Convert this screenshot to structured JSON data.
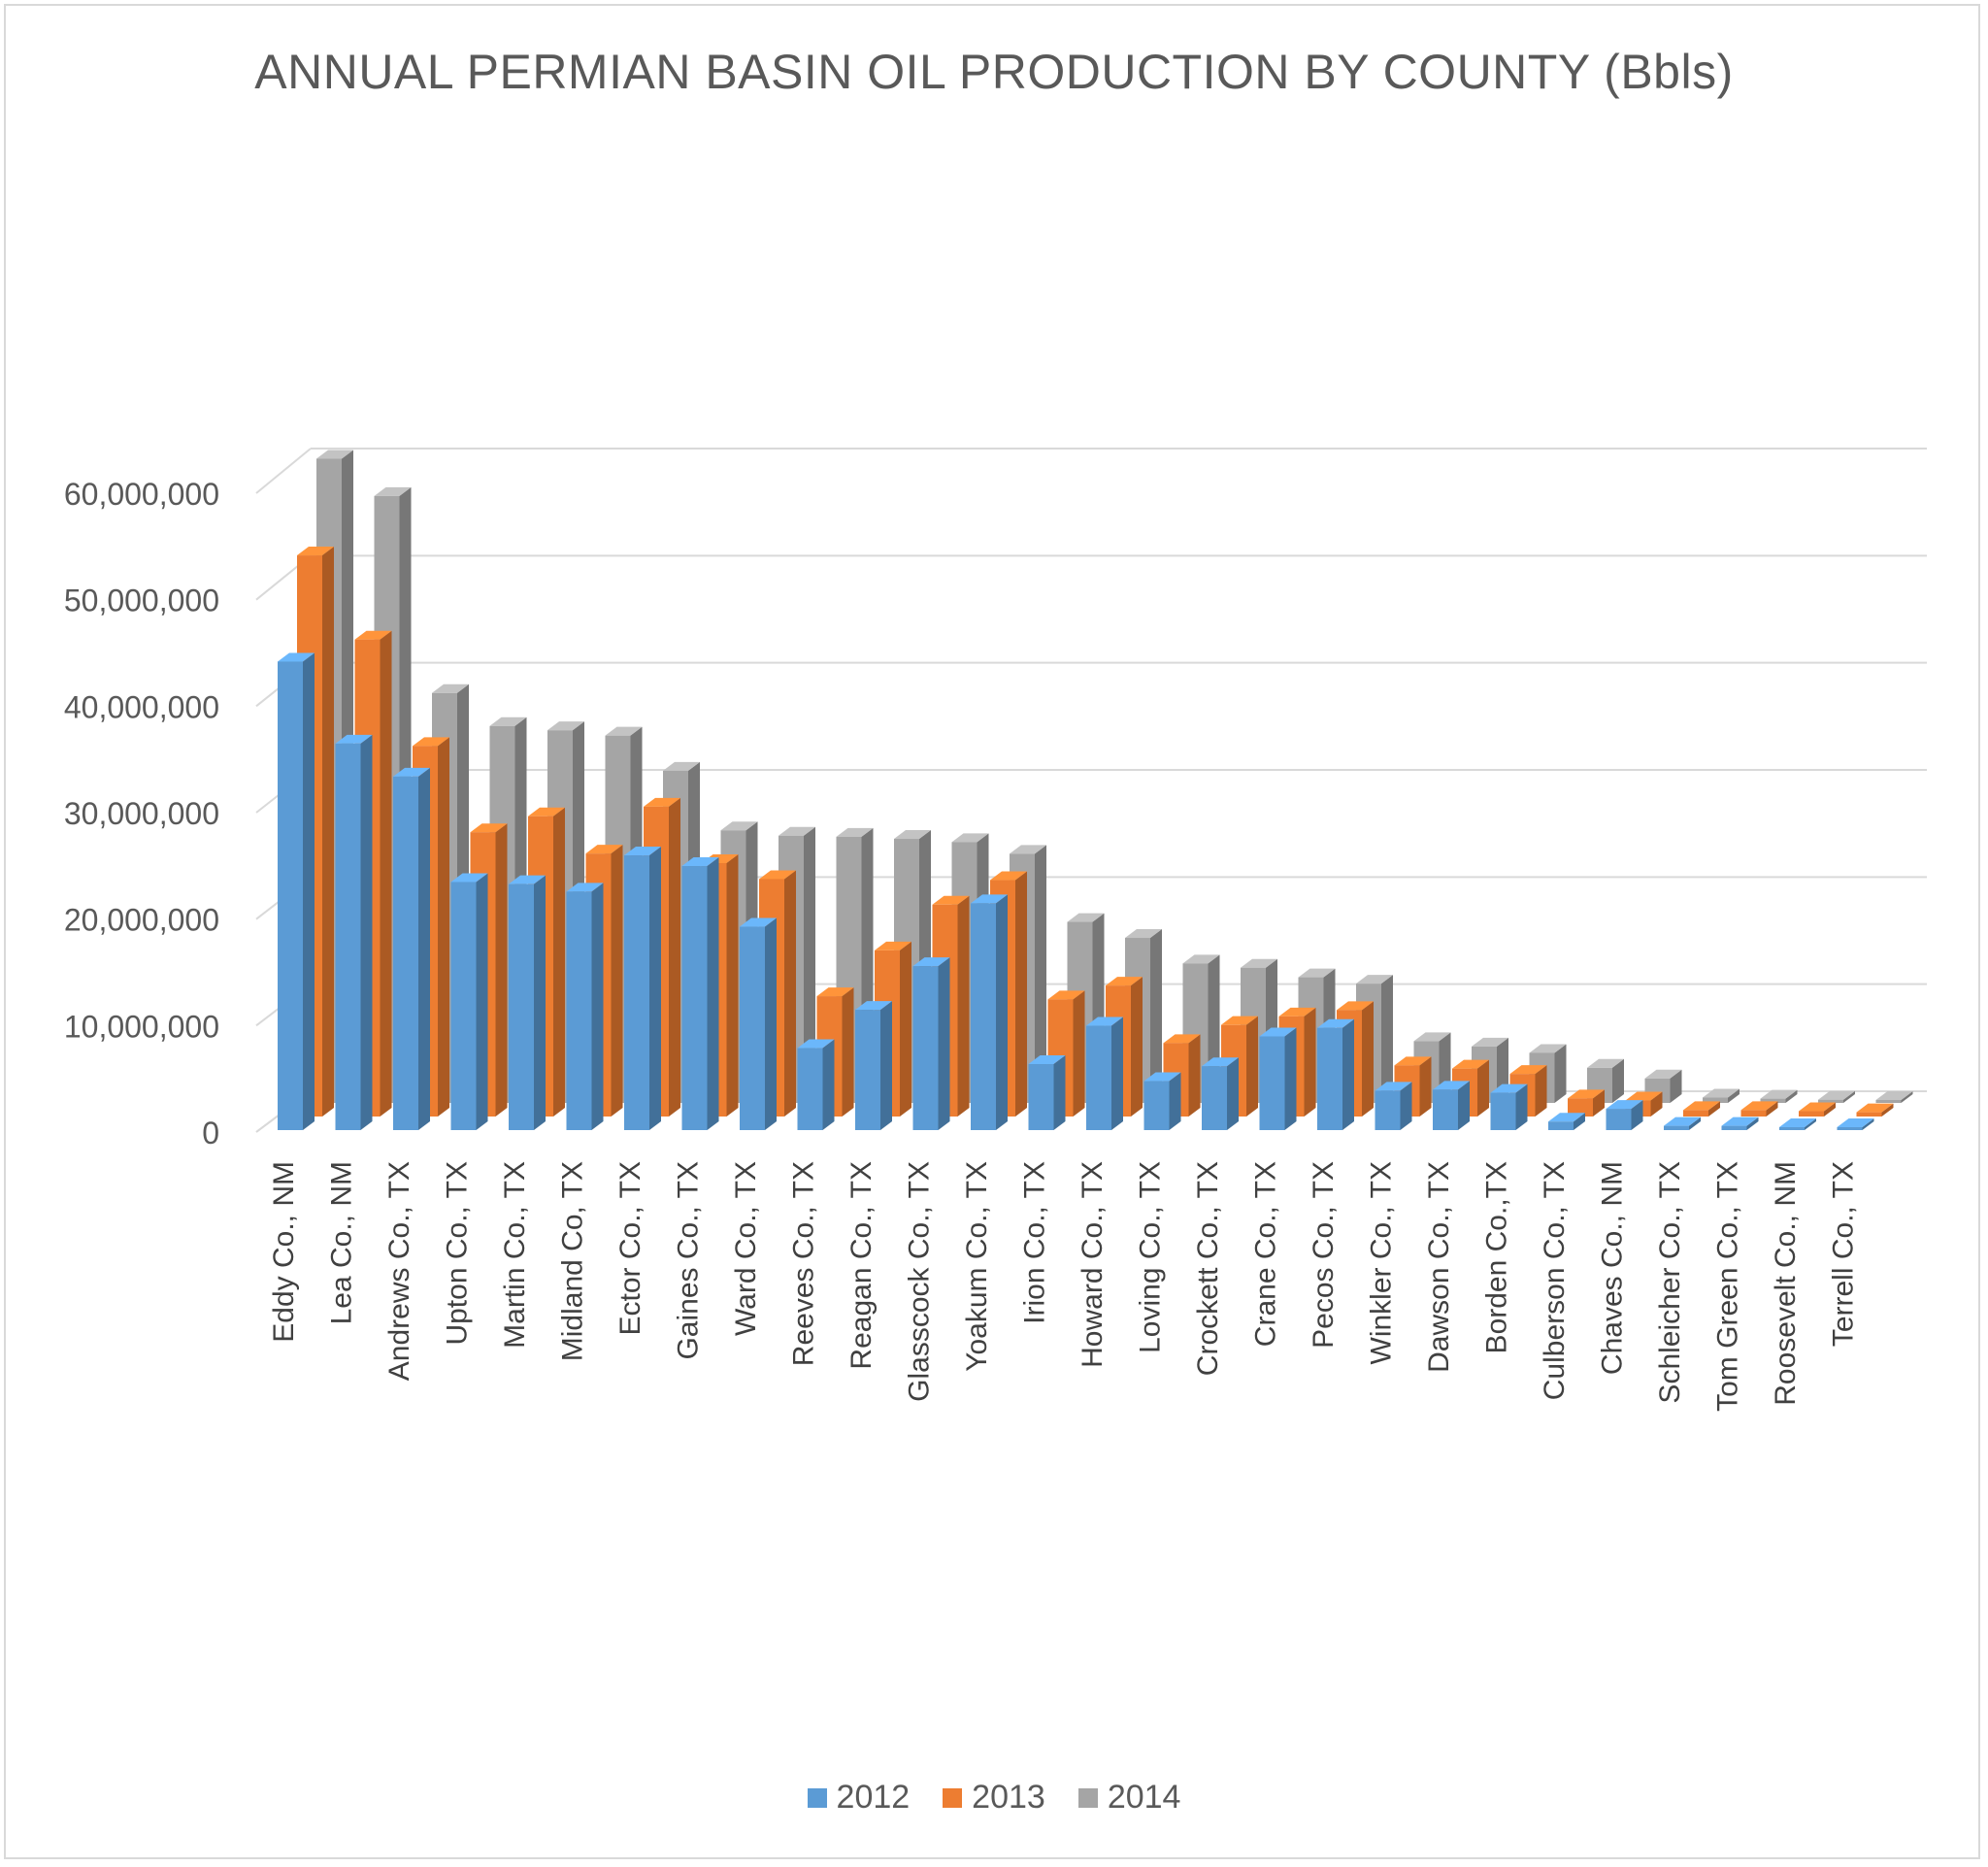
{
  "chart_data": {
    "type": "bar",
    "title": "ANNUAL PERMIAN BASIN OIL PRODUCTION  BY COUNTY (Bbls)",
    "xlabel": "",
    "ylabel": "",
    "ylim": [
      0,
      60000000
    ],
    "yticks": [
      "0",
      "10,000,000",
      "20,000,000",
      "30,000,000",
      "40,000,000",
      "50,000,000",
      "60,000,000"
    ],
    "grid": true,
    "three_d": true,
    "legend_position": "bottom",
    "categories": [
      "Eddy Co., NM",
      "Lea Co., NM",
      "Andrews Co., TX",
      "Upton Co., TX",
      "Martin Co., TX",
      "Midland Co, TX",
      "Ector Co., TX",
      "Gaines Co., TX",
      "Ward Co., TX",
      "Reeves Co., TX",
      "Reagan Co., TX",
      "Glasscock Co., TX",
      "Yoakum Co., TX",
      "Irion Co., TX",
      "Howard Co., TX",
      "Loving Co., TX",
      "Crockett Co., TX",
      "Crane Co., TX",
      "Pecos Co., TX",
      "Winkler Co., TX",
      "Dawson Co., TX",
      "Borden Co.,TX",
      "Culberson Co., TX",
      "Chaves Co., NM",
      "Schleicher Co., TX",
      "Tom Green Co., TX",
      "Roosevelt Co., NM",
      "Terrell Co., TX"
    ],
    "series": [
      {
        "name": "2012",
        "color": "#5b9bd5",
        "values": [
          44000000,
          36300000,
          33200000,
          23300000,
          23100000,
          22400000,
          25800000,
          24800000,
          19100000,
          7700000,
          11300000,
          15400000,
          21300000,
          6200000,
          9800000,
          4600000,
          6000000,
          8800000,
          9600000,
          3700000,
          3800000,
          3500000,
          800000,
          2000000,
          400000,
          400000,
          200000,
          100000
        ]
      },
      {
        "name": "2013",
        "color": "#ed7d31",
        "values": [
          52700000,
          44800000,
          34800000,
          26700000,
          28200000,
          24700000,
          29100000,
          23800000,
          22300000,
          11300000,
          15600000,
          19900000,
          22200000,
          11000000,
          12300000,
          6900000,
          8600000,
          9400000,
          10000000,
          4800000,
          4500000,
          4000000,
          1700000,
          1500000,
          600000,
          600000,
          500000,
          400000
        ]
      },
      {
        "name": "2014",
        "color": "#a5a5a5",
        "values": [
          60500000,
          57000000,
          38500000,
          35400000,
          35000000,
          34500000,
          31200000,
          25600000,
          25100000,
          25000000,
          24800000,
          24500000,
          23400000,
          17000000,
          15500000,
          13100000,
          12700000,
          11800000,
          11200000,
          5800000,
          5300000,
          4700000,
          3300000,
          2300000,
          500000,
          400000,
          300000,
          200000
        ]
      }
    ]
  }
}
